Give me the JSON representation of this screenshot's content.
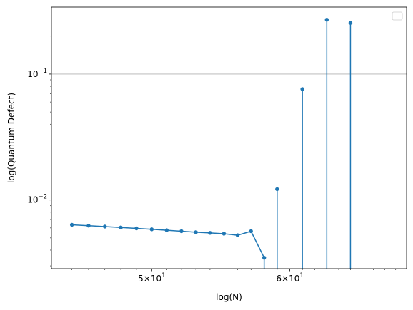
{
  "chart_data": {
    "type": "line",
    "title": "",
    "xlabel": "log(N)",
    "ylabel": "log(Quantum Defect)",
    "xscale": "log",
    "yscale": "log",
    "xlim": [
      43.8,
      70.0
    ],
    "ylim": [
      0.00285,
      0.34
    ],
    "grid": {
      "x": false,
      "y": true,
      "y_which": "major"
    },
    "legend": {
      "placement": "top-right",
      "entries": []
    },
    "x_ticks": [
      {
        "value": 50,
        "base": "5",
        "sup": "1"
      },
      {
        "value": 60,
        "base": "6",
        "sup": "1"
      }
    ],
    "y_ticks": [
      {
        "value": 0.01,
        "sup": "−2"
      },
      {
        "value": 0.1,
        "sup": "−1"
      }
    ],
    "color": "#1f77b4",
    "series": [
      {
        "x": [
          45,
          46,
          47,
          48,
          49,
          50,
          51,
          52,
          53,
          54,
          55,
          56,
          57,
          58,
          59,
          61,
          63,
          65
        ],
        "y": [
          0.00635,
          0.00625,
          0.00615,
          0.00605,
          0.00595,
          0.00585,
          0.00575,
          0.00565,
          0.00555,
          0.00548,
          0.0054,
          0.00525,
          0.00565,
          0.00348,
          0.0122,
          0.076,
          0.27,
          0.255
        ]
      }
    ]
  }
}
